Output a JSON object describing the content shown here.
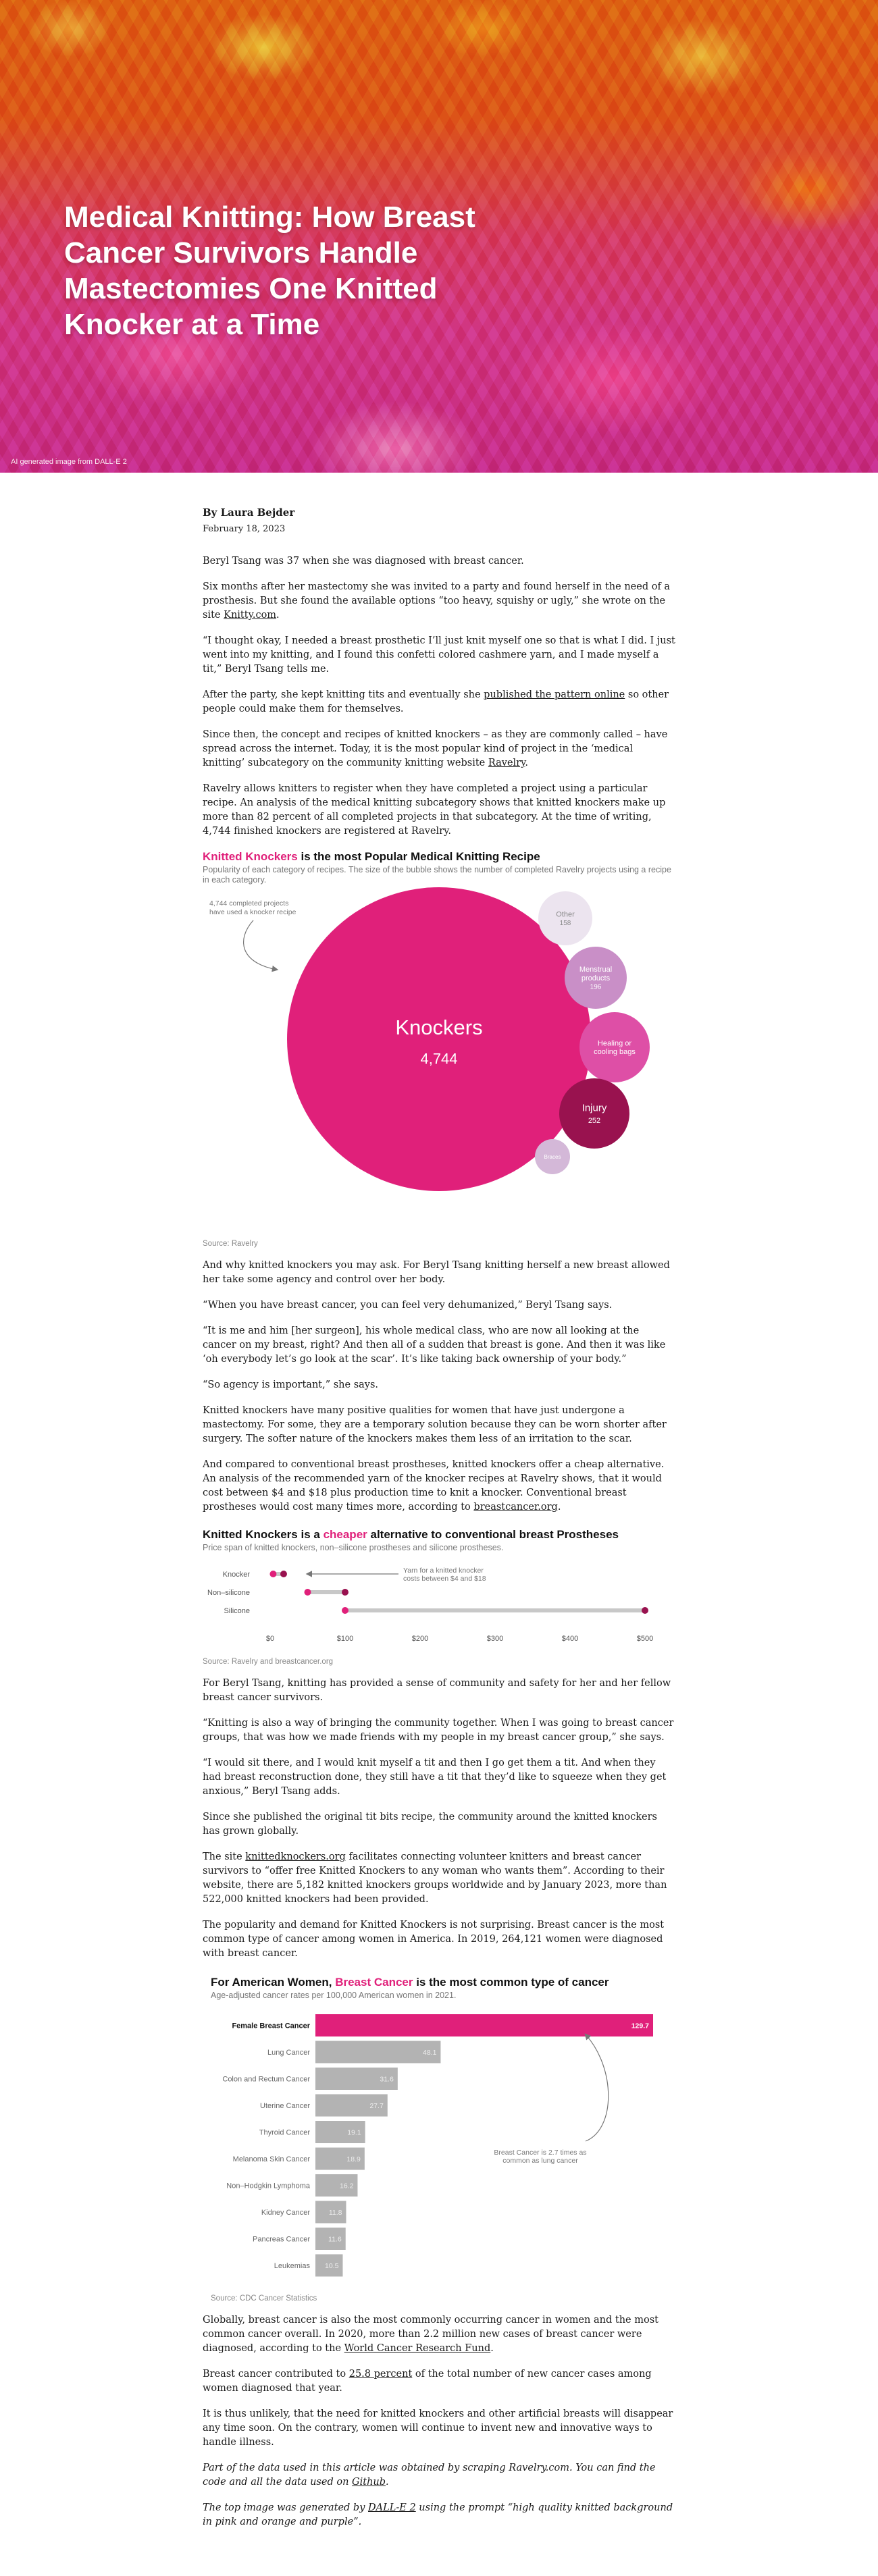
{
  "hero": {
    "title": "Medical Knitting: How Breast Cancer Survivors Handle Mastectomies One Knitted Knocker at a Time",
    "image_credit": "AI generated image from DALL-E 2"
  },
  "article": {
    "author": "By Laura Bejder",
    "date": "February 18, 2023",
    "p1": "Beryl Tsang was 37 when she was diagnosed with breast cancer.",
    "p2": {
      "before": "Six months after her mastectomy she was invited to a party and found herself in the need of a prosthesis. But she found the available options “too heavy, squishy or ugly,” she wrote on the site ",
      "link": "Knitty.com",
      "after": "."
    },
    "p3": "“I thought okay, I needed a breast prosthetic I’ll just knit myself one so that is what I did. I just went into my knitting, and I found this confetti colored cashmere yarn, and I made myself a tit,” Beryl Tsang tells me.",
    "p4": {
      "before": "After the party, she kept knitting tits and eventually she ",
      "link": "published the pattern online",
      "after": " so other people could make them for themselves."
    },
    "p5": {
      "before": "Since then, the concept and recipes of knitted knockers – as they are commonly called – have spread across the internet. Today, it is the most popular kind of project in the ‘medical knitting’ subcategory on the community knitting website ",
      "link": "Ravelry",
      "after": "."
    },
    "p6": "Ravelry allows knitters to register when they have completed a project using a particular recipe. An analysis of the medical knitting subcategory shows that knitted knockers make up more than 82 percent of all completed projects in that subcategory. At the time of writing, 4,744 finished knockers are registered at Ravelry.",
    "p7": "And why knitted knockers you may ask. For Beryl Tsang knitting herself a new breast allowed her take some agency and control over her body.",
    "p8": "“When you have breast cancer, you can feel very dehumanized,” Beryl Tsang says.",
    "p9": "“It is me and him [her surgeon], his whole medical class, who are now all looking at the cancer on my breast, right? And then all of a sudden that breast is gone. And then it was like ‘oh everybody let’s go look at the scar’. It’s like taking back ownership of your body.”",
    "p10": "“So agency is important,” she says.",
    "p11": "Knitted knockers have many positive qualities for women that have just undergone a mastectomy. For some, they are a temporary solution because they can be worn shorter after surgery. The softer nature of the knockers makes them less of an irritation to the scar.",
    "p12": {
      "before": "And compared to conventional breast prostheses, knitted knockers offer a cheap alternative. An analysis of the recommended yarn of the knocker recipes at Ravelry shows, that it would cost between $4 and $18 plus production time to knit a knocker. Conventional breast prostheses would cost many times more, according to ",
      "link": "breastcancer.org",
      "after": "."
    },
    "p13": "For Beryl Tsang, knitting has provided a sense of community and safety for her and her fellow breast cancer survivors.",
    "p14": "“Knitting is also a way of bringing the community together. When I was going to breast cancer groups, that was how we made friends with my people in my breast cancer group,” she says.",
    "p15": "“I would sit there, and I would knit myself a tit and then I go get them a tit. And when they had breast reconstruction done, they still have a tit that they’d like to squeeze when they get anxious,” Beryl Tsang adds.",
    "p16": "Since she published the original tit bits recipe, the community around the knitted knockers has grown globally.",
    "p17": {
      "before": "The site ",
      "link": "knittedknockers.org",
      "after": " facilitates connecting volunteer knitters and breast cancer survivors to “offer free Knitted Knockers to any woman who wants them”. According to their website, there are 5,182 knitted knockers groups worldwide and by January 2023, more than 522,000 knitted knockers had been provided."
    },
    "p18": "The popularity and demand for Knitted Knockers is not surprising. Breast cancer is the most common type of cancer among women in America. In 2019, 264,121 women were diagnosed with breast cancer.",
    "p19": {
      "before": "Globally, breast cancer is also the most commonly occurring cancer in women and the most common cancer overall. In 2020, more than 2.2 million new cases of breast cancer were diagnosed, according to the ",
      "link": "World Cancer Research Fund",
      "after": "."
    },
    "p20": {
      "before": "Breast cancer contributed to ",
      "link": "25.8 percent",
      "after": " of the total number of new cancer cases among women diagnosed that year."
    },
    "p21": "It is thus unlikely, that the need for knitted knockers and other artificial breasts will disappear any time soon. On the contrary, women will continue to invent new and innovative ways to handle illness.",
    "p22": {
      "before": "Part of the data used in this article was obtained by scraping Ravelry.com. You can find the code and all the data used on ",
      "link": "Github",
      "after": "."
    },
    "p23": {
      "before": "The top image was generated by ",
      "link": "DALL-E 2",
      "after": " using the prompt “high quality knitted background in pink and orange and purple”."
    }
  },
  "charts": {
    "bubble": {
      "title_hl": "Knitted Knockers",
      "title_rest": " is the most Popular Medical Knitting Recipe",
      "subtitle": "Popularity of each category of recipes. The size of the bubble shows the number of completed Ravelry projects using a recipe in each category.",
      "annotation_line1": "4,744 completed projects",
      "annotation_line2": "have used a knocker recipe",
      "source": "Source: Ravelry"
    },
    "range": {
      "title_pre": "Knitted Knockers is a ",
      "title_hl": "cheaper",
      "title_post": " alternative to conventional breast Prostheses",
      "subtitle": "Price span of knitted knockers, non–silicone prostheses and silicone prostheses.",
      "annotation_line1": "Yarn for a knitted knocker",
      "annotation_line2": "costs between $4 and $18",
      "source": "Source: Ravelry and breastcancer.org"
    },
    "hbar": {
      "title_pre": "For American Women, ",
      "title_hl": "Breast Cancer",
      "title_post": " is the most common type of cancer",
      "subtitle": "Age-adjusted cancer rates per 100,000 American women in 2021.",
      "annotation_line1": "Breast Cancer is 2.7 times as",
      "annotation_line2": "common as lung cancer",
      "source": "Source: CDC Cancer Statistics"
    }
  },
  "chart_data": [
    {
      "type": "bubble",
      "title": "Knitted Knockers is the most Popular Medical Knitting Recipe",
      "categories": [
        "Knockers",
        "Other",
        "Menstrual products",
        "Healing or cooling bags",
        "Injury",
        "Braces"
      ],
      "values": [
        4744,
        158,
        196,
        null,
        252,
        null
      ],
      "colors": [
        "#e0207a",
        "#ece4ef",
        "#c98fc7",
        "#de4fa6",
        "#99124f",
        "#d4b8d8"
      ]
    },
    {
      "type": "range",
      "title": "Knitted Knockers is a cheaper alternative to conventional breast Prostheses",
      "categories": [
        "Knocker",
        "Non-silicone",
        "Silicone"
      ],
      "min": [
        4,
        50,
        100
      ],
      "max": [
        18,
        100,
        500
      ],
      "xlim": [
        0,
        500
      ],
      "xticks": [
        "$0",
        "$100",
        "$200",
        "$300",
        "$400",
        "$500"
      ]
    },
    {
      "type": "bar",
      "orientation": "horizontal",
      "title": "For American Women, Breast Cancer is the most common type of cancer",
      "categories": [
        "Female Breast Cancer",
        "Lung Cancer",
        "Colon and Rectum Cancer",
        "Uterine Cancer",
        "Thyroid Cancer",
        "Melanoma Skin Cancer",
        "Non-Hodgkin Lymphoma",
        "Kidney Cancer",
        "Pancreas Cancer",
        "Leukemias"
      ],
      "values": [
        129.7,
        48.1,
        31.6,
        27.7,
        19.1,
        18.9,
        16.2,
        11.8,
        11.6,
        10.5
      ],
      "highlight": "Female Breast Cancer",
      "highlight_color": "#e0207a",
      "bar_color": "#b3b3b3"
    }
  ]
}
